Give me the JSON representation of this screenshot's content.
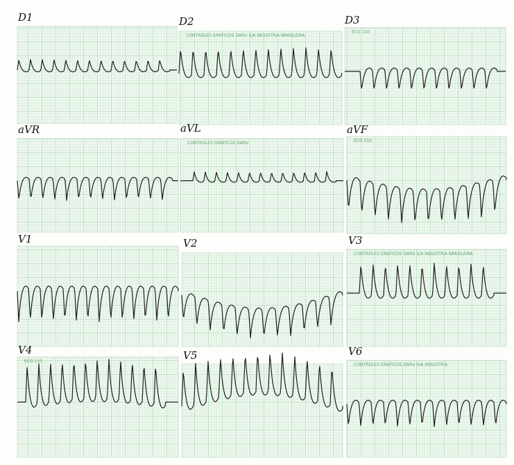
{
  "leads": [
    {
      "label": "D1"
    },
    {
      "label": "D2"
    },
    {
      "label": "D3"
    },
    {
      "label": "aVR"
    },
    {
      "label": "aVL"
    },
    {
      "label": "aVF"
    },
    {
      "label": "V1"
    },
    {
      "label": "V2"
    },
    {
      "label": "V3"
    },
    {
      "label": "V4"
    },
    {
      "label": "V5"
    },
    {
      "label": "V6"
    }
  ],
  "strip_texts": [
    {
      "lead": 1,
      "text": "CONTROLES GRAFICOS DARU S/A INDUSTRIA BRASILEIRA"
    },
    {
      "lead": 2,
      "text": "ECG 110"
    },
    {
      "lead": 4,
      "text": "CONTROLES GRAFICOS DARU"
    },
    {
      "lead": 5,
      "text": "ECG 110"
    },
    {
      "lead": 8,
      "text": "CONTROLES GRAFICOS DARU S/A INDUSTRIA BRASILEIRA"
    },
    {
      "lead": 9,
      "text": "ECG 110"
    },
    {
      "lead": 11,
      "text": "CONTROLES GRAFICOS DARU S/A INDUSTRIA"
    }
  ]
}
